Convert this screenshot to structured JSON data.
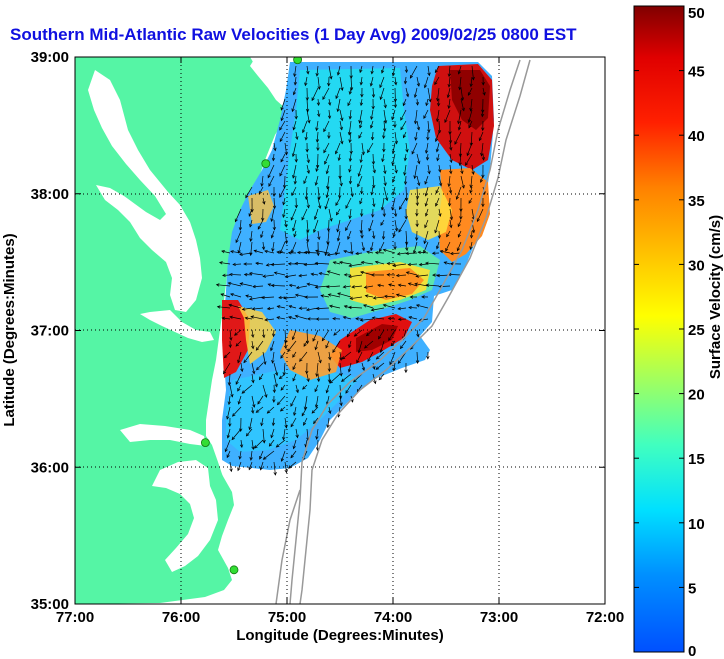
{
  "title": "Southern Mid-Atlantic Raw Velocities (1 Day Avg) 2009/02/25 0800 EST",
  "map": {
    "xlabel": "Longitude (Degrees:Minutes)",
    "ylabel": "Latitude (Degrees:Minutes)",
    "xlim": [
      -77,
      -72
    ],
    "ylim": [
      35,
      39
    ],
    "x_ticks": [
      {
        "value": -77,
        "label": "77:00"
      },
      {
        "value": -76,
        "label": "76:00"
      },
      {
        "value": -75,
        "label": "75:00"
      },
      {
        "value": -74,
        "label": "74:00"
      },
      {
        "value": -73,
        "label": "73:00"
      },
      {
        "value": -72,
        "label": "72:00"
      }
    ],
    "y_ticks": [
      {
        "value": 35,
        "label": "35:00"
      },
      {
        "value": 36,
        "label": "36:00"
      },
      {
        "value": 37,
        "label": "37:00"
      },
      {
        "value": 38,
        "label": "38:00"
      },
      {
        "value": 39,
        "label": "39:00"
      }
    ],
    "grid": "dotted",
    "land_color": "#55f5a5",
    "water_color": "#ffffff",
    "station_color": "#33dd33",
    "stations": [
      {
        "lon": -74.9,
        "lat": 38.98
      },
      {
        "lon": -75.2,
        "lat": 38.22
      },
      {
        "lon": -75.77,
        "lat": 36.18
      },
      {
        "lon": -75.5,
        "lat": 35.25
      }
    ]
  },
  "colorbar": {
    "label": "Surface Velocity (cm/s)",
    "min": 0,
    "max": 50,
    "ticks": [
      {
        "value": 0,
        "label": "0"
      },
      {
        "value": 5,
        "label": "5"
      },
      {
        "value": 10,
        "label": "10"
      },
      {
        "value": 15,
        "label": "15"
      },
      {
        "value": 20,
        "label": "20"
      },
      {
        "value": 25,
        "label": "25"
      },
      {
        "value": 30,
        "label": "30"
      },
      {
        "value": 35,
        "label": "35"
      },
      {
        "value": 40,
        "label": "40"
      },
      {
        "value": 45,
        "label": "45"
      },
      {
        "value": 50,
        "label": "50"
      }
    ]
  }
}
